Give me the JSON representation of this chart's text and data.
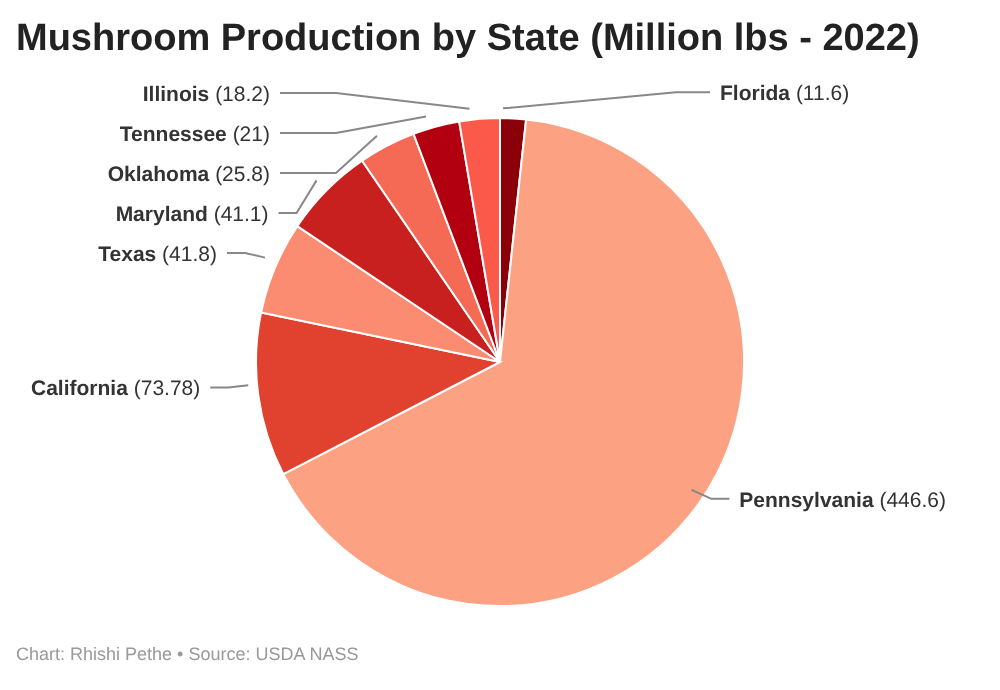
{
  "chart_data": {
    "type": "pie",
    "title": "Mushroom Production by State (Million lbs - 2022)",
    "categories": [
      "Florida",
      "Pennsylvania",
      "California",
      "Texas",
      "Maryland",
      "Oklahoma",
      "Tennessee",
      "Illinois"
    ],
    "values": [
      11.6,
      446.6,
      73.78,
      41.8,
      41.1,
      25.8,
      21,
      18.2
    ],
    "colors": [
      "#8b0008",
      "#fca283",
      "#e0422f",
      "#fb8c72",
      "#c8201f",
      "#f46a55",
      "#b30010",
      "#fb5a4a"
    ],
    "value_labels": [
      "(11.6)",
      "(446.6)",
      "(73.78)",
      "(41.8)",
      "(41.1)",
      "(25.8)",
      "(21)",
      "(18.2)"
    ],
    "annotations": [
      "Chart: Rhishi Pethe • Source: USDA NASS"
    ]
  }
}
